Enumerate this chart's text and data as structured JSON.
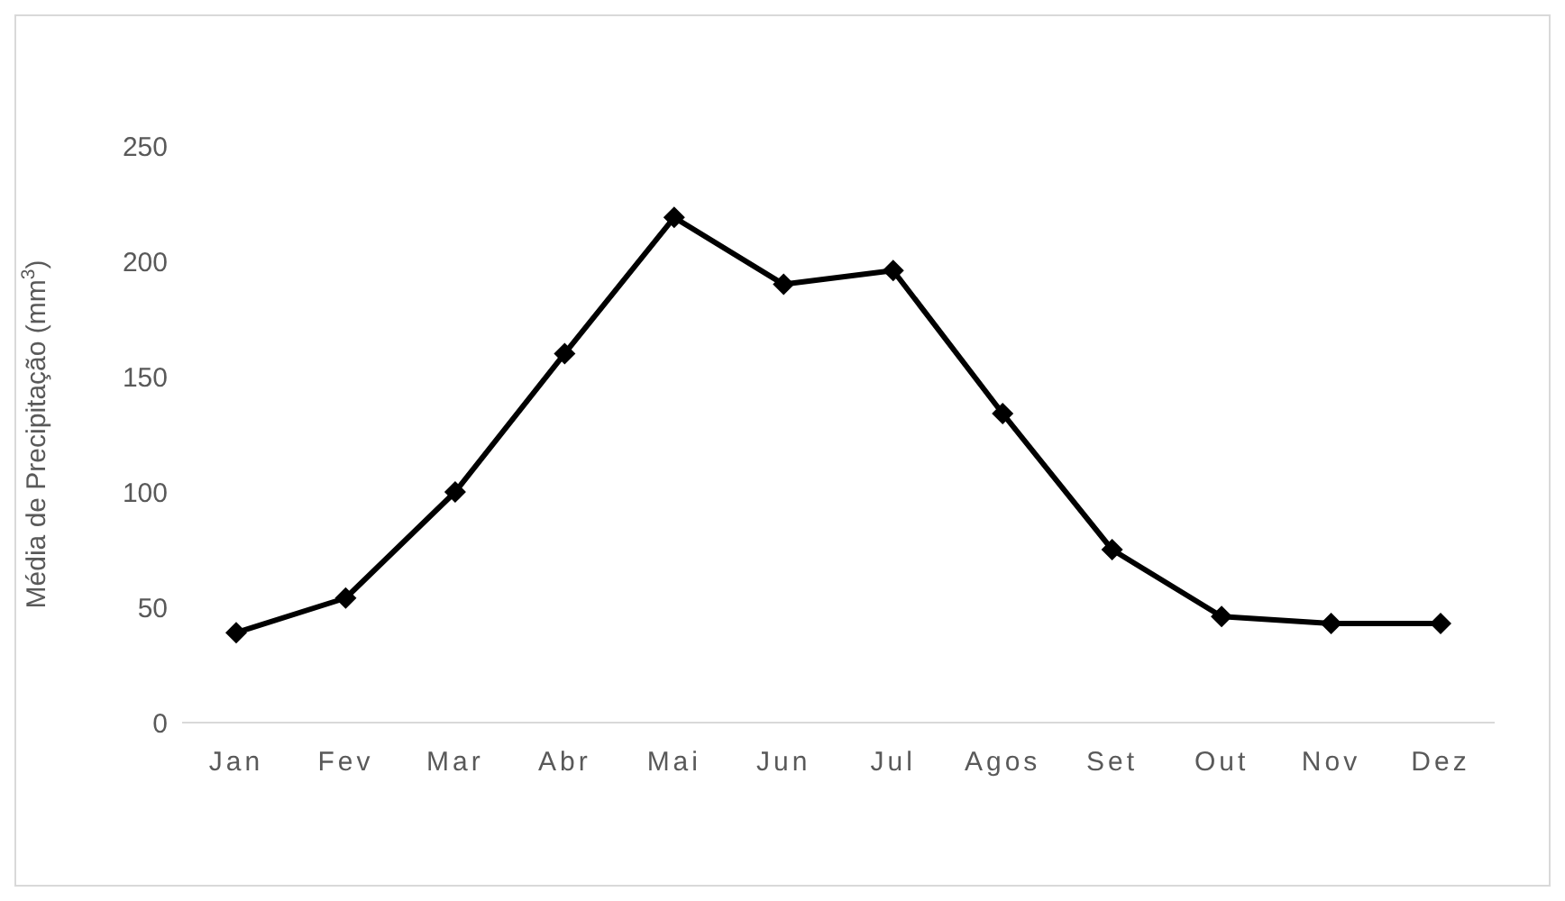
{
  "chart_data": {
    "type": "line",
    "ylabel": "Média de Precipitação (mm$^{3}$)",
    "categories": [
      "Jan",
      "Fev",
      "Mar",
      "Abr",
      "Mai",
      "Jun",
      "Jul",
      "Agos",
      "Set",
      "Out",
      "Nov",
      "Dez"
    ],
    "series": [
      {
        "color": "#000000",
        "values": [
          39,
          54,
          100,
          160,
          219,
          190,
          196,
          134,
          75,
          46,
          43,
          43
        ]
      }
    ],
    "ylim": [
      0,
      250
    ],
    "yticks": [
      0,
      50,
      100,
      150,
      200,
      250
    ],
    "grid": false,
    "legend": false,
    "marker": "diamond",
    "line_style": "solid"
  }
}
